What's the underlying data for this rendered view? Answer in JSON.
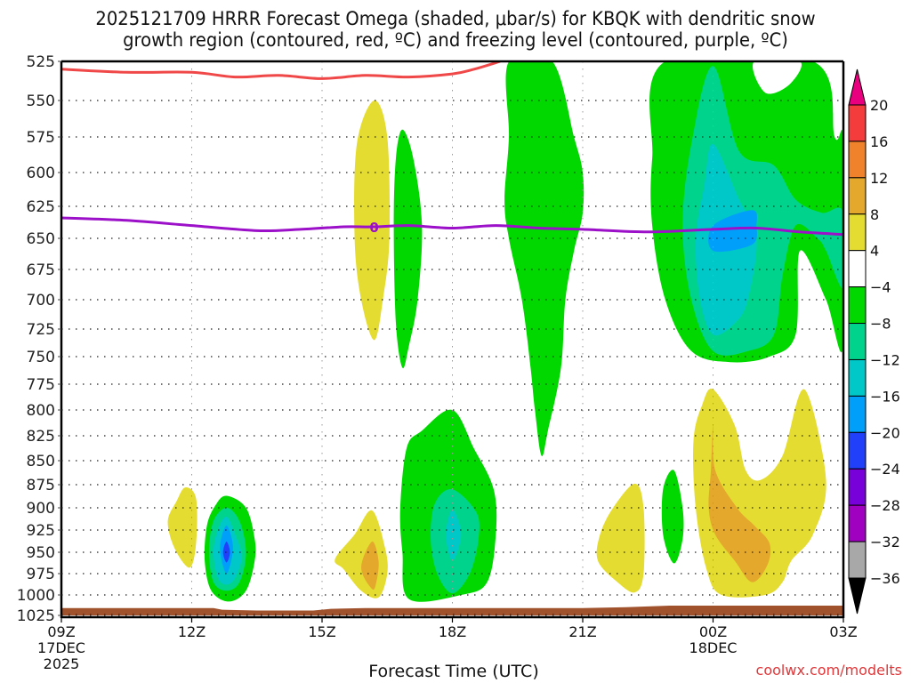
{
  "chart_data": {
    "type": "heatmap",
    "title": "2025121709 HRRR Forecast Omega (shaded, μbar/s) for KBQK with dendritic snow",
    "title_line2": "growth region (contoured, red, ºC) and freezing level (contoured, purple, ºC)",
    "xlabel": "Forecast Time (UTC)",
    "ylabel": "",
    "watermark": "coolwx.com/modelts",
    "x_hours_range": [
      0,
      18
    ],
    "x_ticks": [
      {
        "hour": 0,
        "label": "09Z",
        "sub1": "17DEC",
        "sub2": "2025"
      },
      {
        "hour": 3,
        "label": "12Z",
        "sub1": "",
        "sub2": ""
      },
      {
        "hour": 6,
        "label": "15Z",
        "sub1": "",
        "sub2": ""
      },
      {
        "hour": 9,
        "label": "18Z",
        "sub1": "",
        "sub2": ""
      },
      {
        "hour": 12,
        "label": "21Z",
        "sub1": "",
        "sub2": ""
      },
      {
        "hour": 15,
        "label": "00Z",
        "sub1": "18DEC",
        "sub2": ""
      },
      {
        "hour": 18,
        "label": "03Z",
        "sub1": "",
        "sub2": ""
      }
    ],
    "y_ticks": [
      525,
      550,
      575,
      600,
      625,
      650,
      675,
      700,
      725,
      750,
      775,
      800,
      825,
      850,
      875,
      900,
      925,
      950,
      975,
      1000,
      1025
    ],
    "ylim": [
      525,
      1025
    ],
    "grid": true,
    "colorbar": {
      "placement": "right",
      "bins": [
        {
          "label": "20",
          "color": "#e8007e",
          "kind": "top-arrow"
        },
        {
          "label": "16",
          "color": "#f43c3c"
        },
        {
          "label": "12",
          "color": "#f0822c"
        },
        {
          "label": "8",
          "color": "#e4a82c"
        },
        {
          "label": "4",
          "color": "#e4dc30"
        },
        {
          "label": "-4",
          "color": "#ffffff"
        },
        {
          "label": "-8",
          "color": "#00d800"
        },
        {
          "label": "-12",
          "color": "#00d48c"
        },
        {
          "label": "-16",
          "color": "#00c8c8"
        },
        {
          "label": "-20",
          "color": "#00a0fa"
        },
        {
          "label": "-24",
          "color": "#2040fa"
        },
        {
          "label": "-28",
          "color": "#7800d8"
        },
        {
          "label": "-32",
          "color": "#a000c0"
        },
        {
          "label": "-36",
          "color": "#a8a8a8"
        },
        {
          "label": "",
          "color": "#000000",
          "kind": "bottom-arrow"
        }
      ]
    },
    "freezing_level": {
      "color": "#9b10c8",
      "label": "0",
      "label_hour": 7.2,
      "points": [
        [
          0,
          634
        ],
        [
          1.5,
          636
        ],
        [
          3,
          640
        ],
        [
          4.5,
          644
        ],
        [
          5.5,
          643
        ],
        [
          6.5,
          641
        ],
        [
          7.2,
          641
        ],
        [
          8,
          640
        ],
        [
          9,
          642
        ],
        [
          10,
          640
        ],
        [
          11,
          642
        ],
        [
          12,
          643
        ],
        [
          13.5,
          645
        ],
        [
          15,
          643
        ],
        [
          16,
          642
        ],
        [
          17,
          645
        ],
        [
          18,
          647
        ]
      ]
    },
    "dgz_contour": {
      "color": "#f04848",
      "points": [
        [
          0,
          530
        ],
        [
          1.5,
          532
        ],
        [
          3,
          532
        ],
        [
          4,
          535
        ],
        [
          5,
          534
        ],
        [
          6,
          536
        ],
        [
          7,
          534
        ],
        [
          8,
          535
        ],
        [
          9,
          533
        ],
        [
          9.5,
          530
        ],
        [
          10.1,
          525
        ]
      ]
    },
    "terrain": {
      "color": "#a0522d",
      "points": [
        [
          0,
          1016
        ],
        [
          3.5,
          1016
        ],
        [
          3.7,
          1018
        ],
        [
          4.5,
          1019
        ],
        [
          5.8,
          1019
        ],
        [
          6.2,
          1017
        ],
        [
          7,
          1016
        ],
        [
          9,
          1016
        ],
        [
          12,
          1016
        ],
        [
          13,
          1015
        ],
        [
          14,
          1013
        ],
        [
          18,
          1013
        ]
      ]
    },
    "omega_regions": [
      {
        "name": "yellow-12z",
        "value_bin": "4",
        "color": "#e4dc30",
        "points": [
          [
            2.85,
            878
          ],
          [
            3.1,
            890
          ],
          [
            3.1,
            940
          ],
          [
            2.95,
            968
          ],
          [
            2.6,
            945
          ],
          [
            2.45,
            915
          ],
          [
            2.65,
            893
          ]
        ]
      },
      {
        "name": "green-13z",
        "value_bin": "-4",
        "color": "#00d800",
        "points": [
          [
            3.8,
            887
          ],
          [
            4.25,
            900
          ],
          [
            4.45,
            935
          ],
          [
            4.45,
            960
          ],
          [
            4.25,
            995
          ],
          [
            3.85,
            1008
          ],
          [
            3.45,
            995
          ],
          [
            3.3,
            960
          ],
          [
            3.35,
            920
          ],
          [
            3.55,
            897
          ]
        ]
      },
      {
        "name": "teal-13z",
        "value_bin": "-8",
        "color": "#00d48c",
        "points": [
          [
            3.8,
            900
          ],
          [
            4.1,
            915
          ],
          [
            4.25,
            950
          ],
          [
            4.1,
            985
          ],
          [
            3.8,
            995
          ],
          [
            3.5,
            985
          ],
          [
            3.4,
            950
          ],
          [
            3.5,
            915
          ]
        ]
      },
      {
        "name": "cyan-13z",
        "value_bin": "-12",
        "color": "#00c8c8",
        "points": [
          [
            3.8,
            910
          ],
          [
            4.0,
            930
          ],
          [
            4.15,
            955
          ],
          [
            4.0,
            980
          ],
          [
            3.8,
            988
          ],
          [
            3.6,
            980
          ],
          [
            3.5,
            950
          ],
          [
            3.6,
            925
          ]
        ]
      },
      {
        "name": "blue-13z",
        "value_bin": "-16",
        "color": "#00a0fa",
        "points": [
          [
            3.8,
            920
          ],
          [
            3.95,
            945
          ],
          [
            3.8,
            975
          ],
          [
            3.65,
            945
          ]
        ]
      },
      {
        "name": "dblue-13z",
        "value_bin": "-20",
        "color": "#2040fa",
        "points": [
          [
            3.8,
            938
          ],
          [
            3.88,
            950
          ],
          [
            3.8,
            962
          ],
          [
            3.72,
            950
          ]
        ]
      },
      {
        "name": "yellow-15z-tall",
        "value_bin": "4",
        "color": "#e4dc30",
        "points": [
          [
            7.2,
            550
          ],
          [
            7.5,
            575
          ],
          [
            7.55,
            650
          ],
          [
            7.4,
            700
          ],
          [
            7.2,
            735
          ],
          [
            6.9,
            700
          ],
          [
            6.75,
            650
          ],
          [
            6.8,
            580
          ]
        ]
      },
      {
        "name": "green-17z",
        "value_bin": "-4",
        "color": "#00d800",
        "points": [
          [
            7.85,
            570
          ],
          [
            8.1,
            590
          ],
          [
            8.3,
            640
          ],
          [
            8.2,
            700
          ],
          [
            8.0,
            740
          ],
          [
            7.85,
            760
          ],
          [
            7.7,
            720
          ],
          [
            7.65,
            640
          ],
          [
            7.7,
            590
          ]
        ]
      },
      {
        "name": "yellow-16z-low",
        "value_bin": "4",
        "color": "#e4dc30",
        "points": [
          [
            7.15,
            903
          ],
          [
            7.45,
            945
          ],
          [
            7.5,
            975
          ],
          [
            7.3,
            1003
          ],
          [
            6.9,
            995
          ],
          [
            6.5,
            970
          ],
          [
            6.3,
            958
          ],
          [
            6.75,
            930
          ]
        ]
      },
      {
        "name": "orange-16z",
        "value_bin": "8",
        "color": "#e4a82c",
        "points": [
          [
            7.15,
            938
          ],
          [
            7.3,
            960
          ],
          [
            7.25,
            985
          ],
          [
            7.15,
            993
          ],
          [
            6.9,
            968
          ]
        ]
      },
      {
        "name": "green-18z",
        "value_bin": "-4",
        "color": "#00d800",
        "points": [
          [
            9.0,
            800
          ],
          [
            9.5,
            838
          ],
          [
            9.95,
            880
          ],
          [
            10.0,
            930
          ],
          [
            9.8,
            985
          ],
          [
            9.2,
            1000
          ],
          [
            8.0,
            1005
          ],
          [
            7.85,
            950
          ],
          [
            7.8,
            900
          ],
          [
            7.95,
            837
          ],
          [
            8.3,
            820
          ]
        ]
      },
      {
        "name": "teal-18z",
        "value_bin": "-8",
        "color": "#00d48c",
        "points": [
          [
            9.0,
            880
          ],
          [
            9.55,
            905
          ],
          [
            9.6,
            935
          ],
          [
            9.4,
            975
          ],
          [
            9.0,
            998
          ],
          [
            8.65,
            975
          ],
          [
            8.5,
            935
          ],
          [
            8.6,
            895
          ]
        ]
      },
      {
        "name": "cyan-18z",
        "value_bin": "-12",
        "color": "#00c8c8",
        "points": [
          [
            9.0,
            902
          ],
          [
            9.2,
            930
          ],
          [
            9.0,
            960
          ],
          [
            8.85,
            930
          ]
        ]
      },
      {
        "name": "green-20z",
        "value_bin": "-4",
        "color": "#00d800",
        "points": [
          [
            10.3,
            525
          ],
          [
            11.3,
            525
          ],
          [
            11.8,
            575
          ],
          [
            12.0,
            600
          ],
          [
            12.0,
            630
          ],
          [
            11.8,
            660
          ],
          [
            11.6,
            700
          ],
          [
            11.5,
            760
          ],
          [
            11.2,
            820
          ],
          [
            11.05,
            845
          ],
          [
            10.9,
            800
          ],
          [
            10.8,
            760
          ],
          [
            10.6,
            700
          ],
          [
            10.3,
            650
          ],
          [
            10.2,
            620
          ],
          [
            10.3,
            575
          ]
        ]
      },
      {
        "name": "yellow-22z",
        "value_bin": "4",
        "color": "#e4dc30",
        "points": [
          [
            13.2,
            874
          ],
          [
            13.4,
            900
          ],
          [
            13.4,
            975
          ],
          [
            13.2,
            997
          ],
          [
            12.8,
            985
          ],
          [
            12.35,
            960
          ],
          [
            12.4,
            930
          ],
          [
            12.7,
            900
          ]
        ]
      },
      {
        "name": "green-23z",
        "value_bin": "-4",
        "color": "#00d800",
        "points": [
          [
            14.1,
            860
          ],
          [
            14.3,
            900
          ],
          [
            14.3,
            935
          ],
          [
            14.1,
            963
          ],
          [
            13.85,
            930
          ],
          [
            13.85,
            880
          ]
        ]
      },
      {
        "name": "yellow-01z",
        "value_bin": "4",
        "color": "#e4dc30",
        "points": [
          [
            15.0,
            780
          ],
          [
            15.5,
            815
          ],
          [
            15.75,
            860
          ],
          [
            16.1,
            870
          ],
          [
            16.6,
            845
          ],
          [
            17.1,
            780
          ],
          [
            17.6,
            870
          ],
          [
            17.3,
            930
          ],
          [
            16.8,
            960
          ],
          [
            16.6,
            985
          ],
          [
            16.2,
            1000
          ],
          [
            15.2,
            1000
          ],
          [
            14.85,
            970
          ],
          [
            14.6,
            900
          ],
          [
            14.55,
            830
          ],
          [
            14.75,
            795
          ]
        ]
      },
      {
        "name": "orange-01z",
        "value_bin": "8",
        "color": "#e4a82c",
        "points": [
          [
            15.0,
            815
          ],
          [
            15.05,
            860
          ],
          [
            15.55,
            900
          ],
          [
            15.95,
            920
          ],
          [
            16.3,
            940
          ],
          [
            16.25,
            965
          ],
          [
            15.9,
            985
          ],
          [
            15.5,
            960
          ],
          [
            15.05,
            930
          ],
          [
            14.9,
            900
          ],
          [
            14.95,
            860
          ]
        ]
      },
      {
        "name": "green-00z-big",
        "value_bin": "-4",
        "color": "#00d800",
        "points": [
          [
            13.9,
            525
          ],
          [
            17.3,
            525
          ],
          [
            17.8,
            575
          ],
          [
            18,
            580
          ],
          [
            18,
            740
          ],
          [
            17.6,
            700
          ],
          [
            17.0,
            660
          ],
          [
            16.9,
            730
          ],
          [
            16.3,
            750
          ],
          [
            15.4,
            755
          ],
          [
            14.5,
            745
          ],
          [
            13.9,
            700
          ],
          [
            13.6,
            640
          ],
          [
            13.6,
            590
          ]
        ]
      },
      {
        "name": "white-hole-01z",
        "value_bin": "-4-to-4",
        "color": "#ffffff",
        "points": [
          [
            15.95,
            525
          ],
          [
            16.2,
            545
          ],
          [
            16.75,
            540
          ],
          [
            17.0,
            525
          ]
        ]
      },
      {
        "name": "teal-00z",
        "value_bin": "-8",
        "color": "#00d48c",
        "points": [
          [
            15.0,
            528
          ],
          [
            15.6,
            585
          ],
          [
            16.4,
            595
          ],
          [
            16.9,
            620
          ],
          [
            17.5,
            630
          ],
          [
            18,
            630
          ],
          [
            18,
            690
          ],
          [
            17.6,
            660
          ],
          [
            17.4,
            650
          ],
          [
            16.9,
            640
          ],
          [
            16.6,
            680
          ],
          [
            16.4,
            730
          ],
          [
            15.8,
            745
          ],
          [
            15.0,
            745
          ],
          [
            14.5,
            700
          ],
          [
            14.3,
            640
          ],
          [
            14.5,
            580
          ]
        ]
      },
      {
        "name": "cyan-00z",
        "value_bin": "-12",
        "color": "#00c8c8",
        "points": [
          [
            15.0,
            580
          ],
          [
            15.6,
            620
          ],
          [
            16.0,
            650
          ],
          [
            15.8,
            700
          ],
          [
            15.5,
            720
          ],
          [
            15.0,
            730
          ],
          [
            14.7,
            700
          ],
          [
            14.6,
            650
          ],
          [
            14.8,
            610
          ]
        ]
      },
      {
        "name": "blue-00z",
        "value_bin": "-16",
        "color": "#00a0fa",
        "points": [
          [
            15.0,
            640
          ],
          [
            15.9,
            628
          ],
          [
            16.0,
            640
          ],
          [
            15.9,
            655
          ],
          [
            15.0,
            660
          ]
        ]
      }
    ]
  }
}
